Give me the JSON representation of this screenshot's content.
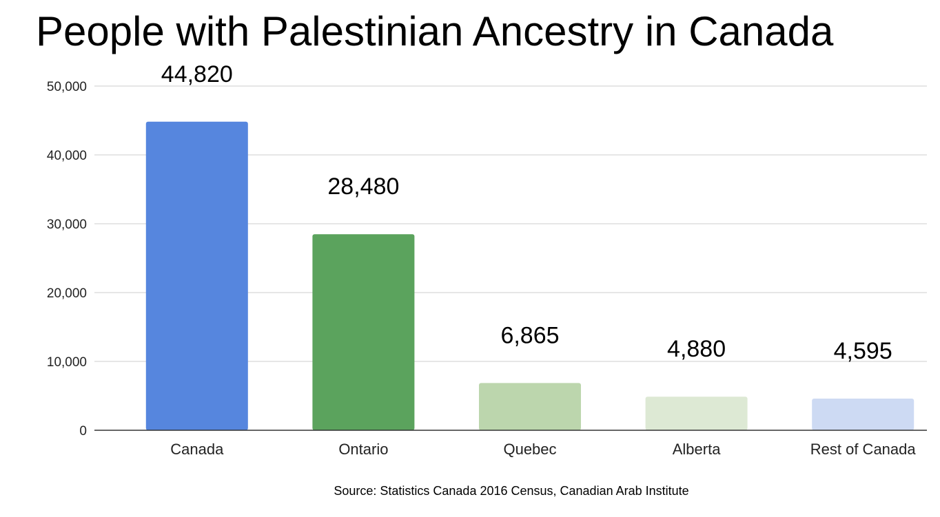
{
  "chart_data": {
    "type": "bar",
    "title": "People with Palestinian Ancestry in Canada",
    "categories": [
      "Canada",
      "Ontario",
      "Quebec",
      "Alberta",
      "Rest of Canada"
    ],
    "values": [
      44820,
      28480,
      6865,
      4880,
      4595
    ],
    "data_labels": [
      "44,820",
      "28,480",
      "6,865",
      "4,880",
      "4,595"
    ],
    "colors": [
      "#5686de",
      "#5ba35d",
      "#bcd6ad",
      "#dde9d4",
      "#cddaf3"
    ],
    "ylim": [
      0,
      50000
    ],
    "yticks": [
      0,
      10000,
      20000,
      30000,
      40000,
      50000
    ],
    "ytick_labels": [
      "0",
      "10,000",
      "20,000",
      "30,000",
      "40,000",
      "50,000"
    ],
    "xlabel": "",
    "ylabel": "",
    "grid": true,
    "legend": "none",
    "source": "Source: Statistics Canada 2016 Census, Canadian Arab Institute"
  }
}
